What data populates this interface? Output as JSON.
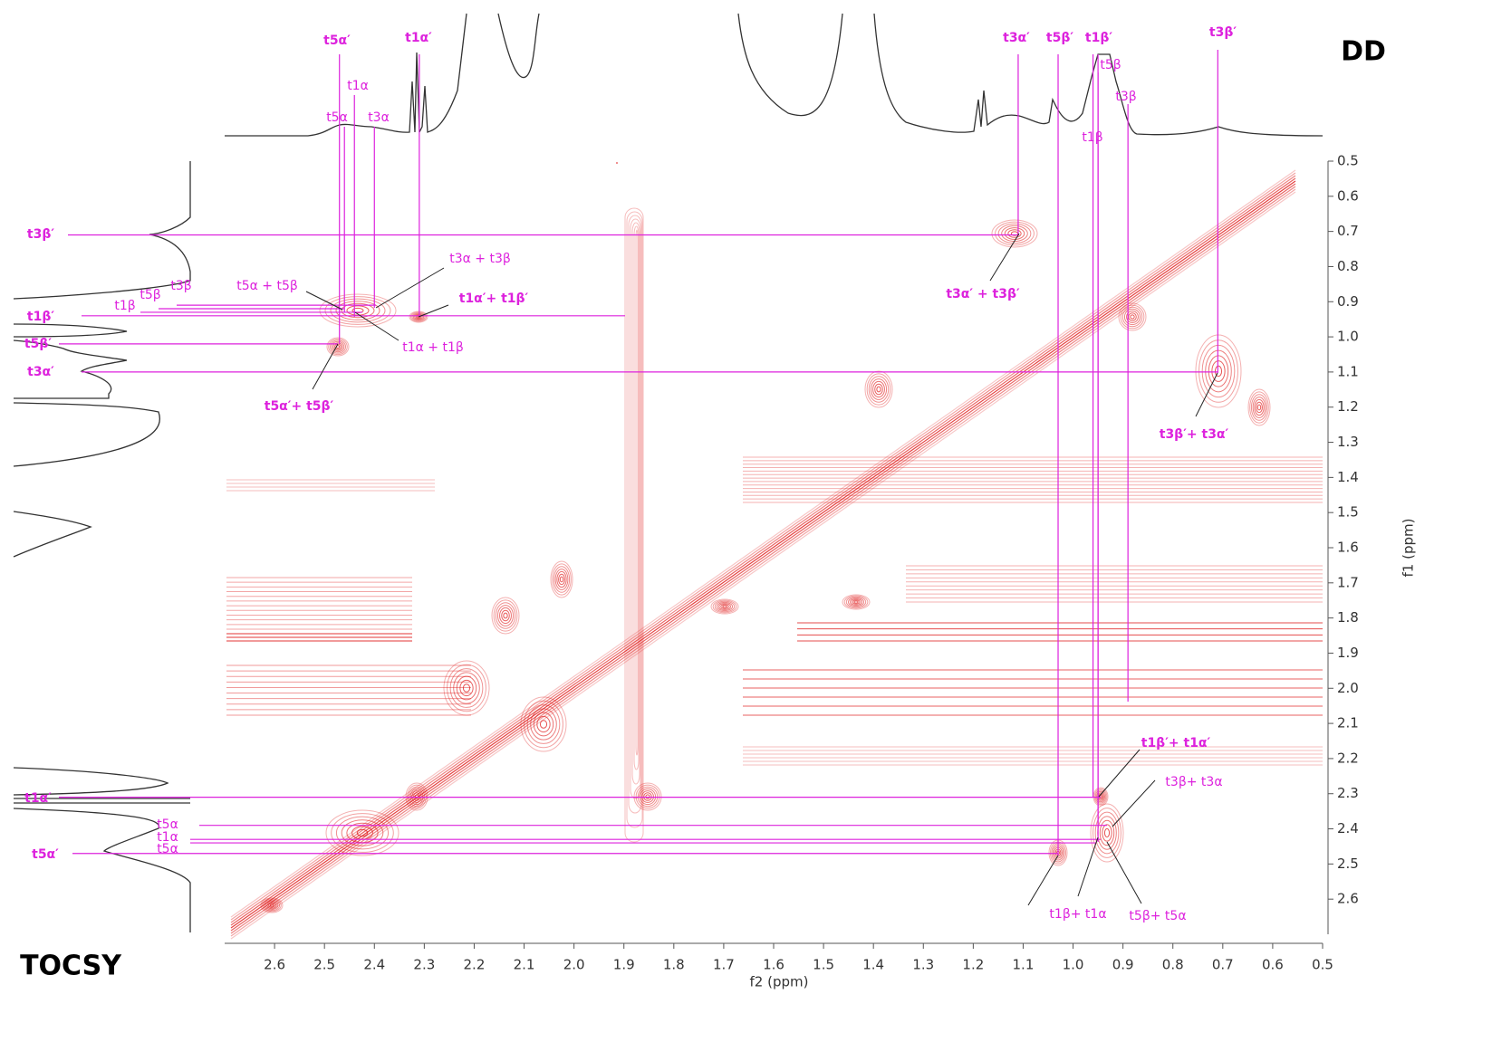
{
  "chart_data": {
    "type": "tocsy",
    "title": "DD",
    "subtitle": "TOCSY",
    "x_label": "f2 (ppm)",
    "y_label": "f1 (ppm)",
    "xlim": [
      2.7,
      0.5
    ],
    "ylim": [
      0.5,
      2.7
    ],
    "xticks": [
      2.6,
      2.5,
      2.4,
      2.3,
      2.2,
      2.1,
      {
        "value": 2,
        "label": "2.0"
      },
      1.9,
      1.8,
      1.7,
      1.6,
      1.5,
      1.4,
      1.3,
      1.2,
      1.1,
      {
        "value": 1,
        "label": "1.0"
      },
      0.9,
      0.8,
      0.7,
      0.6,
      0.5
    ],
    "yticks": [
      0.5,
      0.6,
      0.7,
      0.8,
      0.9,
      {
        "value": 1,
        "label": "1.0"
      },
      1.1,
      1.2,
      1.3,
      1.4,
      1.5,
      1.6,
      1.7,
      1.8,
      1.9,
      {
        "value": 2,
        "label": "2.0"
      },
      2.1,
      2.2,
      2.3,
      2.4,
      2.5,
      2.6
    ],
    "contour_color": "#e02020",
    "annotation_color": "#dd22dd",
    "f2_assignments": [
      {
        "label": "t5α′",
        "shift": 2.47
      },
      {
        "label": "t1α′",
        "shift": 2.31
      },
      {
        "label": "t1α",
        "shift": 2.44
      },
      {
        "label": "t5α",
        "shift": 2.46
      },
      {
        "label": "t3α",
        "shift": 2.4
      },
      {
        "label": "t3α′",
        "shift": 1.11
      },
      {
        "label": "t5β′",
        "shift": 1.03
      },
      {
        "label": "t1β′",
        "shift": 0.96
      },
      {
        "label": "t5β",
        "shift": 0.95
      },
      {
        "label": "t3β",
        "shift": 0.89
      },
      {
        "label": "t1β",
        "shift": 0.95
      },
      {
        "label": "t3β′",
        "shift": 0.71
      }
    ],
    "f1_assignments": [
      {
        "label": "t3β′",
        "shift": 0.71
      },
      {
        "label": "t1β′",
        "shift": 0.94
      },
      {
        "label": "t5β′",
        "shift": 1.02
      },
      {
        "label": "t3α′",
        "shift": 1.1
      },
      {
        "label": "t1β",
        "shift": 0.93
      },
      {
        "label": "t5β",
        "shift": 0.92
      },
      {
        "label": "t3β",
        "shift": 0.91
      },
      {
        "label": "t1α′",
        "shift": 2.31
      },
      {
        "label": "t5α",
        "shift": 2.39
      },
      {
        "label": "t1α",
        "shift": 2.43
      },
      {
        "label": "t5α",
        "shift": 2.44
      },
      {
        "label": "t5α′",
        "shift": 2.47
      }
    ],
    "cross_peaks": [
      {
        "label": "t3α + t3β"
      },
      {
        "label": "t1α′+ t1β′"
      },
      {
        "label": "t5α + t5β"
      },
      {
        "label": "t1α + t1β"
      },
      {
        "label": "t5α′+ t5β′"
      },
      {
        "label": "t3α′ + t3β′"
      },
      {
        "label": "t3β′+ t3α′"
      },
      {
        "label": "t1β′+ t1α′"
      },
      {
        "label": "t3β+ t3α"
      },
      {
        "label": "t1β+ t1α"
      },
      {
        "label": "t5β+ t5α"
      }
    ]
  }
}
